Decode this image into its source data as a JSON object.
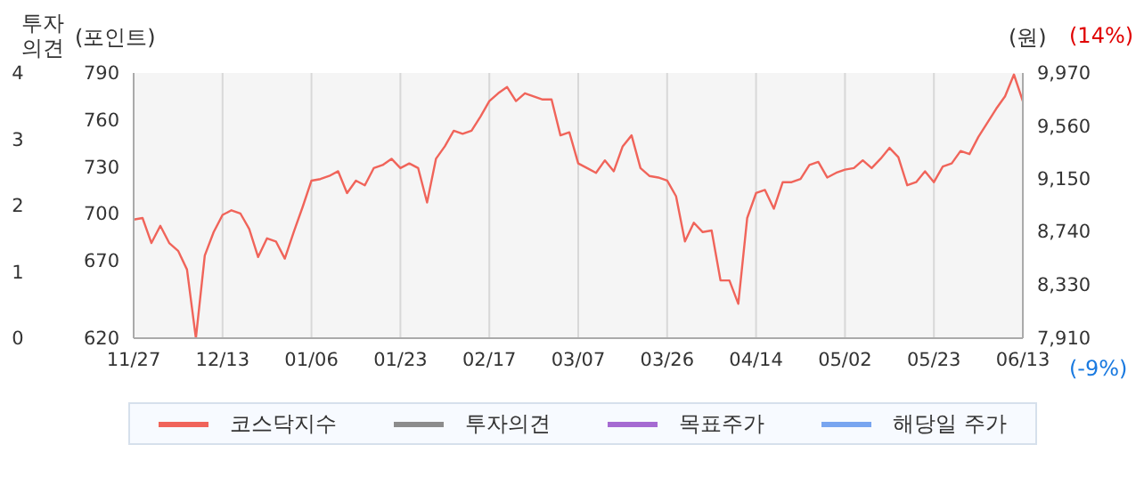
{
  "chart_data": {
    "type": "line",
    "ylabel": "(포인트)",
    "y2label": "(원)",
    "y3label": "투자의견",
    "categories": [
      "11/27",
      null,
      null,
      null,
      null,
      null,
      null,
      null,
      null,
      null,
      "12/13",
      null,
      null,
      null,
      null,
      null,
      null,
      null,
      null,
      null,
      "01/06",
      null,
      null,
      null,
      null,
      null,
      null,
      null,
      null,
      null,
      "01/23",
      null,
      null,
      null,
      null,
      null,
      null,
      null,
      null,
      null,
      "02/17",
      null,
      null,
      null,
      null,
      null,
      null,
      null,
      null,
      null,
      "03/07",
      null,
      null,
      null,
      null,
      null,
      null,
      null,
      null,
      null,
      "03/26",
      null,
      null,
      null,
      null,
      null,
      null,
      null,
      null,
      null,
      "04/14",
      null,
      null,
      null,
      null,
      null,
      null,
      null,
      null,
      null,
      "05/02",
      null,
      null,
      null,
      null,
      null,
      null,
      null,
      null,
      null,
      "05/23",
      null,
      null,
      null,
      null,
      null,
      null,
      null,
      null,
      null,
      "06/13"
    ],
    "series": [
      {
        "name": "코스닥지수",
        "color": "#f0645a",
        "values": [
          696,
          697,
          681,
          692,
          681,
          676,
          664,
          620,
          673,
          688,
          699,
          702,
          700,
          690,
          672,
          684,
          682,
          671,
          688,
          704,
          721,
          722,
          724,
          727,
          713,
          721,
          718,
          729,
          731,
          735,
          729,
          732,
          729,
          707,
          735,
          743,
          753,
          751,
          753,
          762,
          772,
          777,
          781,
          772,
          777,
          775,
          773,
          773,
          750,
          752,
          732,
          729,
          726,
          734,
          727,
          743,
          750,
          729,
          724,
          723,
          721,
          711,
          682,
          694,
          688,
          689,
          657,
          657,
          642,
          697,
          713,
          715,
          703,
          720,
          720,
          722,
          731,
          733,
          723,
          726,
          728,
          729,
          734,
          729,
          735,
          742,
          736,
          718,
          720,
          727,
          720,
          730,
          732,
          740,
          738,
          749,
          758,
          767,
          775,
          789,
          772
        ]
      },
      {
        "name": "투자의견",
        "color": "#8c8c8c",
        "values": [
          null,
          null,
          null,
          null,
          null,
          null,
          null,
          null,
          null,
          null,
          null,
          null,
          null,
          null,
          null,
          null,
          null,
          null,
          null,
          null,
          null,
          null,
          null,
          null,
          null,
          null,
          null,
          null,
          null,
          null,
          null,
          null,
          null,
          null,
          null,
          null,
          null,
          null,
          null,
          null,
          null,
          null,
          null,
          null,
          null,
          null,
          null,
          null,
          null,
          null,
          null,
          null,
          null,
          null,
          null,
          null,
          null,
          null,
          null,
          null,
          null,
          null,
          null,
          null,
          null,
          null,
          null,
          null,
          null,
          null,
          null,
          null,
          null,
          null,
          null,
          null,
          null,
          null,
          null,
          null,
          null,
          null,
          null,
          null,
          null,
          null,
          null,
          null,
          null,
          null,
          null,
          null,
          null,
          null,
          null,
          null,
          null,
          null,
          null,
          null,
          null
        ]
      },
      {
        "name": "목표주가",
        "color": "#a56ad2",
        "values": [
          null,
          null,
          null,
          null,
          null,
          null,
          null,
          null,
          null,
          null,
          null,
          null,
          null,
          null,
          null,
          null,
          null,
          null,
          null,
          null,
          null,
          null,
          null,
          null,
          null,
          null,
          null,
          null,
          null,
          null,
          null,
          null,
          null,
          null,
          null,
          null,
          null,
          null,
          null,
          null,
          null,
          null,
          null,
          null,
          null,
          null,
          null,
          null,
          null,
          null,
          null,
          null,
          null,
          null,
          null,
          null,
          null,
          null,
          null,
          null,
          null,
          null,
          null,
          null,
          null,
          null,
          null,
          null,
          null,
          null,
          null,
          null,
          null,
          null,
          null,
          null,
          null,
          null,
          null,
          null,
          null,
          null,
          null,
          null,
          null,
          null,
          null,
          null,
          null,
          null,
          null,
          null,
          null,
          null,
          null,
          null,
          null,
          null,
          null,
          null,
          null
        ]
      },
      {
        "name": "해당일 주가",
        "color": "#78a5f0",
        "values": [
          null,
          null,
          null,
          null,
          null,
          null,
          null,
          null,
          null,
          null,
          null,
          null,
          null,
          null,
          null,
          null,
          null,
          null,
          null,
          null,
          null,
          null,
          null,
          null,
          null,
          null,
          null,
          null,
          null,
          null,
          null,
          null,
          null,
          null,
          null,
          null,
          null,
          null,
          null,
          null,
          null,
          null,
          null,
          null,
          null,
          null,
          null,
          null,
          null,
          null,
          null,
          null,
          null,
          null,
          null,
          null,
          null,
          null,
          null,
          null,
          null,
          null,
          null,
          null,
          null,
          null,
          null,
          null,
          null,
          null,
          null,
          null,
          null,
          null,
          null,
          null,
          null,
          null,
          null,
          null,
          null,
          null,
          null,
          null,
          null,
          null,
          null,
          null,
          null,
          null,
          null,
          null,
          null,
          null,
          null,
          null,
          null,
          null,
          null,
          null,
          null
        ]
      }
    ],
    "ylim": [
      620,
      790
    ],
    "yticks": [
      620,
      670,
      700,
      730,
      760,
      790
    ],
    "y2lim": [
      7910,
      9970
    ],
    "y2ticks": [
      {
        "value": 7910,
        "label": "7,910"
      },
      {
        "value": 8330,
        "label": "8,330"
      },
      {
        "value": 8740,
        "label": "8,740"
      },
      {
        "value": 9150,
        "label": "9,150"
      },
      {
        "value": 9560,
        "label": "9,560"
      },
      {
        "value": 9970,
        "label": "9,970"
      }
    ],
    "y3lim": [
      0,
      4
    ],
    "y3ticks": [
      0,
      1,
      2,
      3,
      4
    ],
    "annotations": [
      "(14%)",
      "(-9%)"
    ],
    "grid": "x",
    "legend": "bottom"
  }
}
